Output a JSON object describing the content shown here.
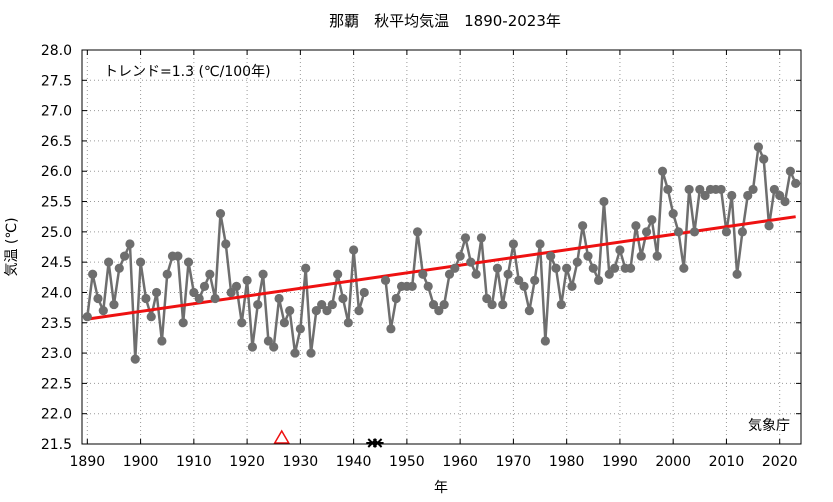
{
  "chart_data": {
    "type": "line",
    "title": "那覇　秋平均気温　1890-2023年",
    "xlabel": "年",
    "ylabel": "気温 (℃)",
    "xlim": [
      1889,
      2024
    ],
    "ylim": [
      21.5,
      28.0
    ],
    "xticks": [
      "1890",
      "1900",
      "1910",
      "1920",
      "1930",
      "1940",
      "1950",
      "1960",
      "1970",
      "1980",
      "1990",
      "2000",
      "2010",
      "2020"
    ],
    "yticks": [
      "21.5",
      "22.0",
      "22.5",
      "23.0",
      "23.5",
      "24.0",
      "24.5",
      "25.0",
      "25.5",
      "26.0",
      "26.5",
      "27.0",
      "27.5",
      "28.0"
    ],
    "grid": true,
    "annotation": "トレンド=1.3 (℃/100年)",
    "source": "気象庁",
    "colors": {
      "series": "#6e6e6e",
      "trend": "#ee1111",
      "marker_relocation": "#ee1111",
      "marker_instrument": "#000000"
    },
    "series": [
      {
        "x": [
          1890,
          1891,
          1892,
          1893,
          1894,
          1895,
          1896,
          1897,
          1898,
          1899,
          1900,
          1901,
          1902,
          1903,
          1904,
          1905,
          1906,
          1907,
          1908,
          1909,
          1910,
          1911,
          1912,
          1913,
          1914,
          1915,
          1916,
          1917,
          1918,
          1919,
          1920,
          1921,
          1922,
          1923,
          1924,
          1925,
          1926,
          1927,
          1928,
          1929,
          1930,
          1931,
          1932,
          1933,
          1934,
          1935,
          1936,
          1937,
          1938,
          1939,
          1940,
          1941,
          1942,
          1943,
          1944,
          1945,
          1946,
          1947,
          1948,
          1949,
          1950,
          1951,
          1952,
          1953,
          1954,
          1955,
          1956,
          1957,
          1958,
          1959,
          1960,
          1961,
          1962,
          1963,
          1964,
          1965,
          1966,
          1967,
          1968,
          1969,
          1970,
          1971,
          1972,
          1973,
          1974,
          1975,
          1976,
          1977,
          1978,
          1979,
          1980,
          1981,
          1982,
          1983,
          1984,
          1985,
          1986,
          1987,
          1988,
          1989,
          1990,
          1991,
          1992,
          1993,
          1994,
          1995,
          1996,
          1997,
          1998,
          1999,
          2000,
          2001,
          2002,
          2003,
          2004,
          2005,
          2006,
          2007,
          2008,
          2009,
          2010,
          2011,
          2012,
          2013,
          2014,
          2015,
          2016,
          2017,
          2018,
          2019,
          2020,
          2021,
          2022,
          2023
        ],
        "values": [
          23.6,
          24.3,
          23.9,
          23.7,
          24.5,
          23.8,
          24.4,
          24.6,
          24.8,
          22.9,
          24.5,
          23.9,
          23.6,
          24.0,
          23.2,
          24.3,
          24.6,
          24.6,
          23.5,
          24.5,
          24.0,
          23.9,
          24.1,
          24.3,
          23.9,
          25.3,
          24.8,
          24.0,
          24.1,
          23.5,
          24.2,
          23.1,
          23.8,
          24.3,
          23.2,
          23.1,
          23.9,
          23.5,
          23.7,
          23.0,
          23.4,
          24.4,
          23.0,
          23.7,
          23.8,
          23.7,
          23.8,
          24.3,
          23.9,
          23.5,
          24.7,
          23.7,
          24.0,
          null,
          null,
          null,
          24.2,
          23.4,
          23.9,
          24.1,
          24.1,
          24.1,
          25.0,
          24.3,
          24.1,
          23.8,
          23.7,
          23.8,
          24.3,
          24.4,
          24.6,
          24.9,
          24.5,
          24.3,
          24.9,
          23.9,
          23.8,
          24.4,
          23.8,
          24.3,
          24.8,
          24.2,
          24.1,
          23.7,
          24.2,
          24.8,
          23.2,
          24.6,
          24.4,
          23.8,
          24.4,
          24.1,
          24.5,
          25.1,
          24.6,
          24.4,
          24.2,
          25.5,
          24.3,
          24.4,
          24.7,
          24.4,
          24.4,
          25.1,
          24.6,
          25.0,
          25.2,
          24.6,
          26.0,
          25.7,
          25.3,
          25.0,
          24.4,
          25.7,
          25.0,
          25.7,
          25.6,
          25.7,
          25.7,
          25.7,
          25.0,
          25.6,
          24.3,
          25.0,
          25.6,
          25.7,
          26.4,
          26.2,
          25.1,
          25.7,
          25.6,
          25.5,
          26.0,
          25.8
        ]
      },
      {
        "name": "トレンド",
        "x": [
          1890,
          2023
        ],
        "values": [
          23.56,
          25.25
        ]
      }
    ],
    "markers": [
      {
        "symbol": "triangle",
        "x": 1926.5
      },
      {
        "symbol": "x",
        "x": 1943.5
      },
      {
        "symbol": "x",
        "x": 1944.5
      }
    ]
  }
}
